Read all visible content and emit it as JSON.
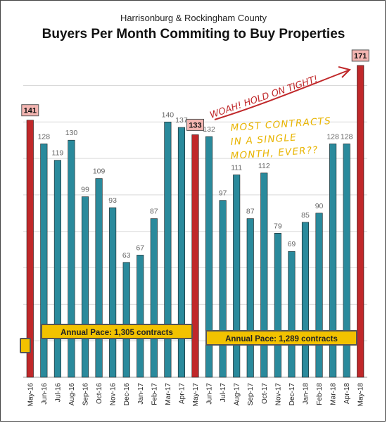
{
  "chart_data": {
    "type": "bar",
    "subtitle": "Harrisonburg & Rockingham County",
    "title": "Buyers Per Month Commiting to Buy Properties",
    "categories": [
      "May-16",
      "Jun-16",
      "Jul-16",
      "Aug-16",
      "Sep-16",
      "Oct-16",
      "Nov-16",
      "Dec-16",
      "Jan-17",
      "Feb-17",
      "Mar-17",
      "Apr-17",
      "May-17",
      "Jun-17",
      "Jul-17",
      "Aug-17",
      "Sep-17",
      "Oct-17",
      "Nov-17",
      "Dec-17",
      "Jan-18",
      "Feb-18",
      "Mar-18",
      "Apr-18",
      "May-18"
    ],
    "values": [
      141,
      128,
      119,
      130,
      99,
      109,
      93,
      63,
      67,
      87,
      140,
      137,
      133,
      132,
      97,
      111,
      87,
      112,
      79,
      69,
      85,
      90,
      128,
      128,
      171
    ],
    "highlighted": [
      "May-16",
      "May-17",
      "May-18"
    ],
    "ylim": [
      0,
      176
    ],
    "grid": "horizontal",
    "colors": {
      "bar": "#2a8a9c",
      "highlight_bar": "#c0282a",
      "highlight_label_bg": "#f4b6b2",
      "pace_box": "#f2c200",
      "annotation": "#c0282a",
      "note": "#e8b400"
    }
  },
  "annotations": {
    "pace_2016": "Annual Pace: 1,305 contracts",
    "pace_2017": "Annual Pace: 1,289 contracts",
    "arrow_note": "WOAH! HOLD ON TIGHT!",
    "note_line1": "MOST CONTRACTS",
    "note_line2": "IN A SINGLE",
    "note_line3": "MONTH, EVER??"
  }
}
